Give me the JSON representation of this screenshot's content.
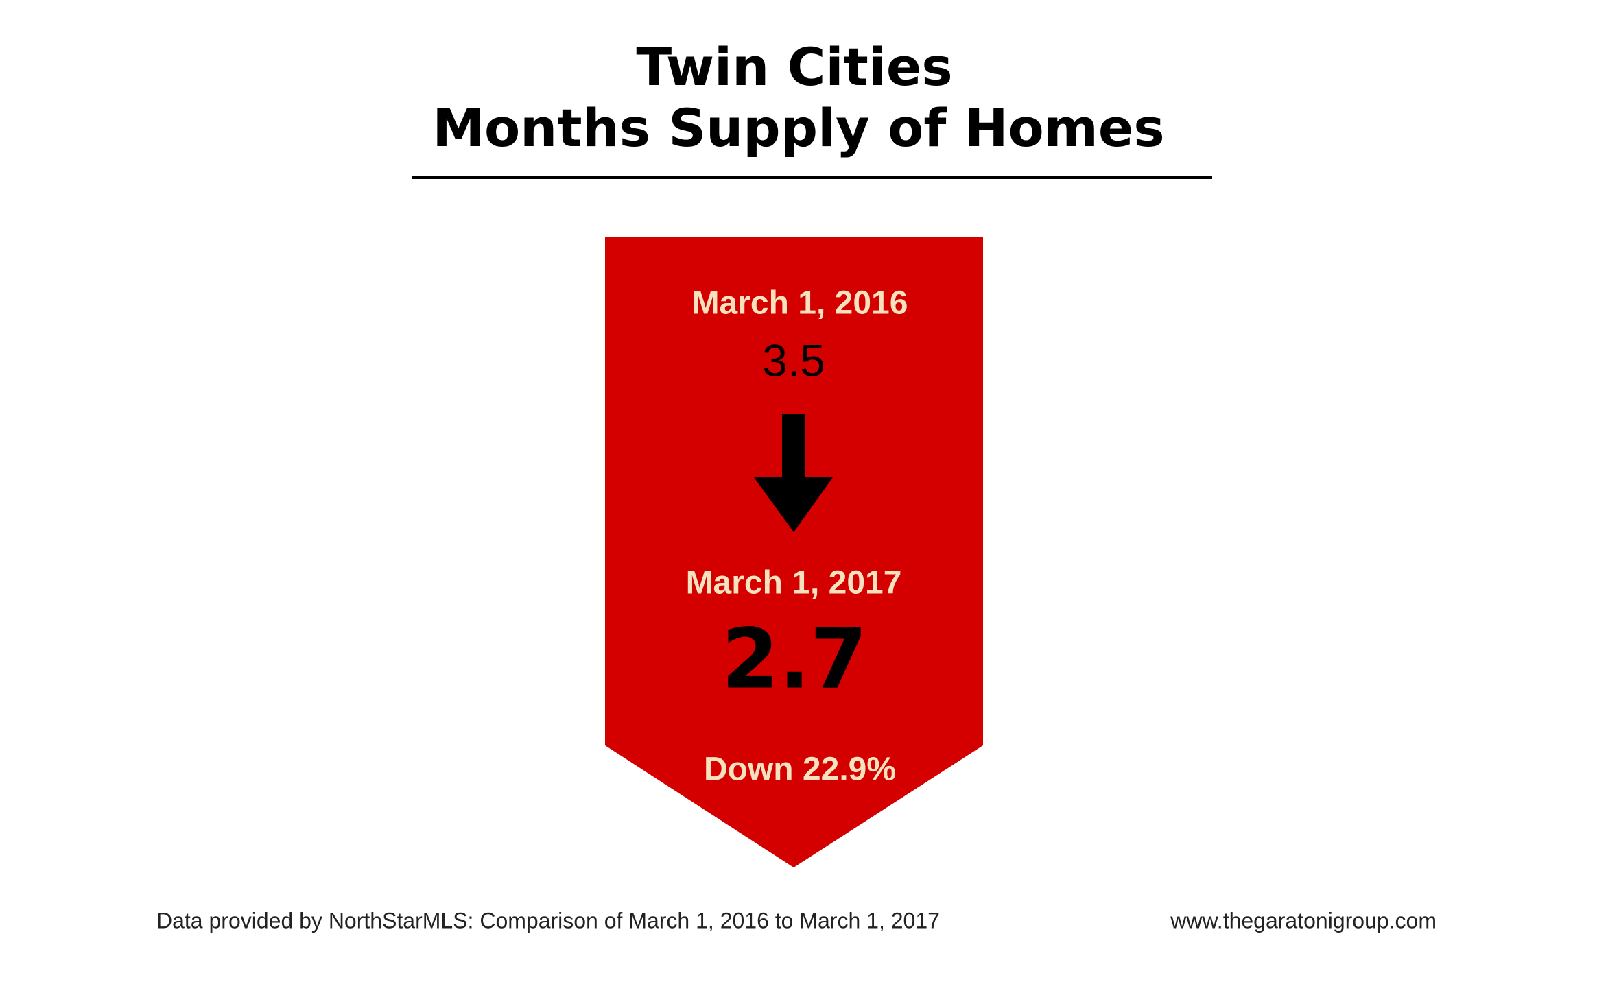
{
  "title": {
    "line1": "Twin Cities",
    "line2": "Months Supply of Homes"
  },
  "before": {
    "date": "March 1, 2016",
    "value": "3.5"
  },
  "after": {
    "date": "March 1, 2017",
    "value": "2.7"
  },
  "change": "Down 22.9%",
  "footer": {
    "source": "Data provided by NorthStarMLS: Comparison of March 1, 2016 to March 1, 2017",
    "website": "www.thegaratonigroup.com"
  }
}
